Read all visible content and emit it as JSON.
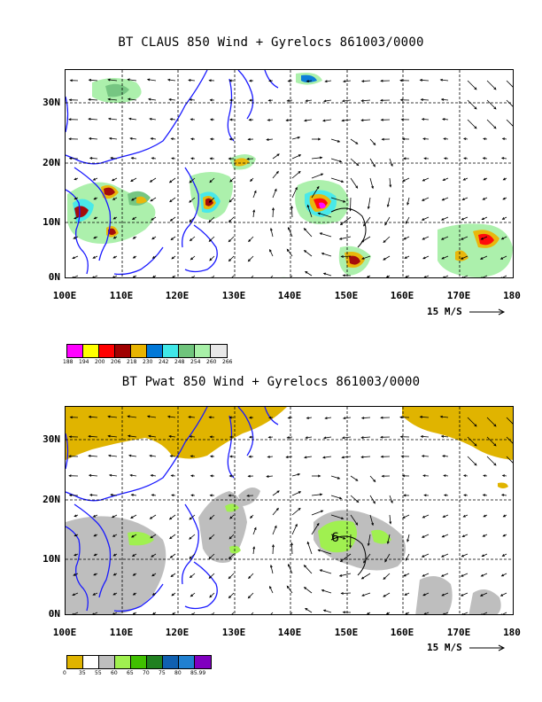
{
  "panel1": {
    "title": "BT CLAUS 850 Wind + Gyrelocs 861003/0000",
    "lat_labels": [
      "30N",
      "20N",
      "10N",
      "0N"
    ],
    "lon_labels": [
      "100E",
      "110E",
      "120E",
      "130E",
      "140E",
      "150E",
      "160E",
      "170E",
      "180"
    ],
    "wind_ref": "15 M/S",
    "legend": {
      "colors": [
        "#ff00ff",
        "#ffff00",
        "#ff0000",
        "#a00000",
        "#e8b400",
        "#0078d8",
        "#40e8e8",
        "#6fc47c",
        "#a8f0a8",
        "#e8e8e8"
      ],
      "labels": [
        "188",
        "194",
        "200",
        "206",
        "218",
        "230",
        "242",
        "248",
        "254",
        "260",
        "266"
      ]
    }
  },
  "panel2": {
    "title": "BT Pwat 850 Wind + Gyrelocs 861003/0000",
    "lat_labels": [
      "30N",
      "20N",
      "10N",
      "0N"
    ],
    "lon_labels": [
      "100E",
      "110E",
      "120E",
      "130E",
      "140E",
      "150E",
      "160E",
      "170E",
      "180"
    ],
    "wind_ref": "15 M/S",
    "marker": "6",
    "legend": {
      "colors": [
        "#e0b400",
        "#ffffff",
        "#bebebe",
        "#a0f050",
        "#40c000",
        "#208020",
        "#1060b0",
        "#2080d0",
        "#8000c0"
      ],
      "labels": [
        "0",
        "35",
        "55",
        "60",
        "65",
        "70",
        "75",
        "80",
        "85.99"
      ]
    }
  },
  "colors": {
    "coast": "#1a1aff",
    "grid": "#000000"
  }
}
